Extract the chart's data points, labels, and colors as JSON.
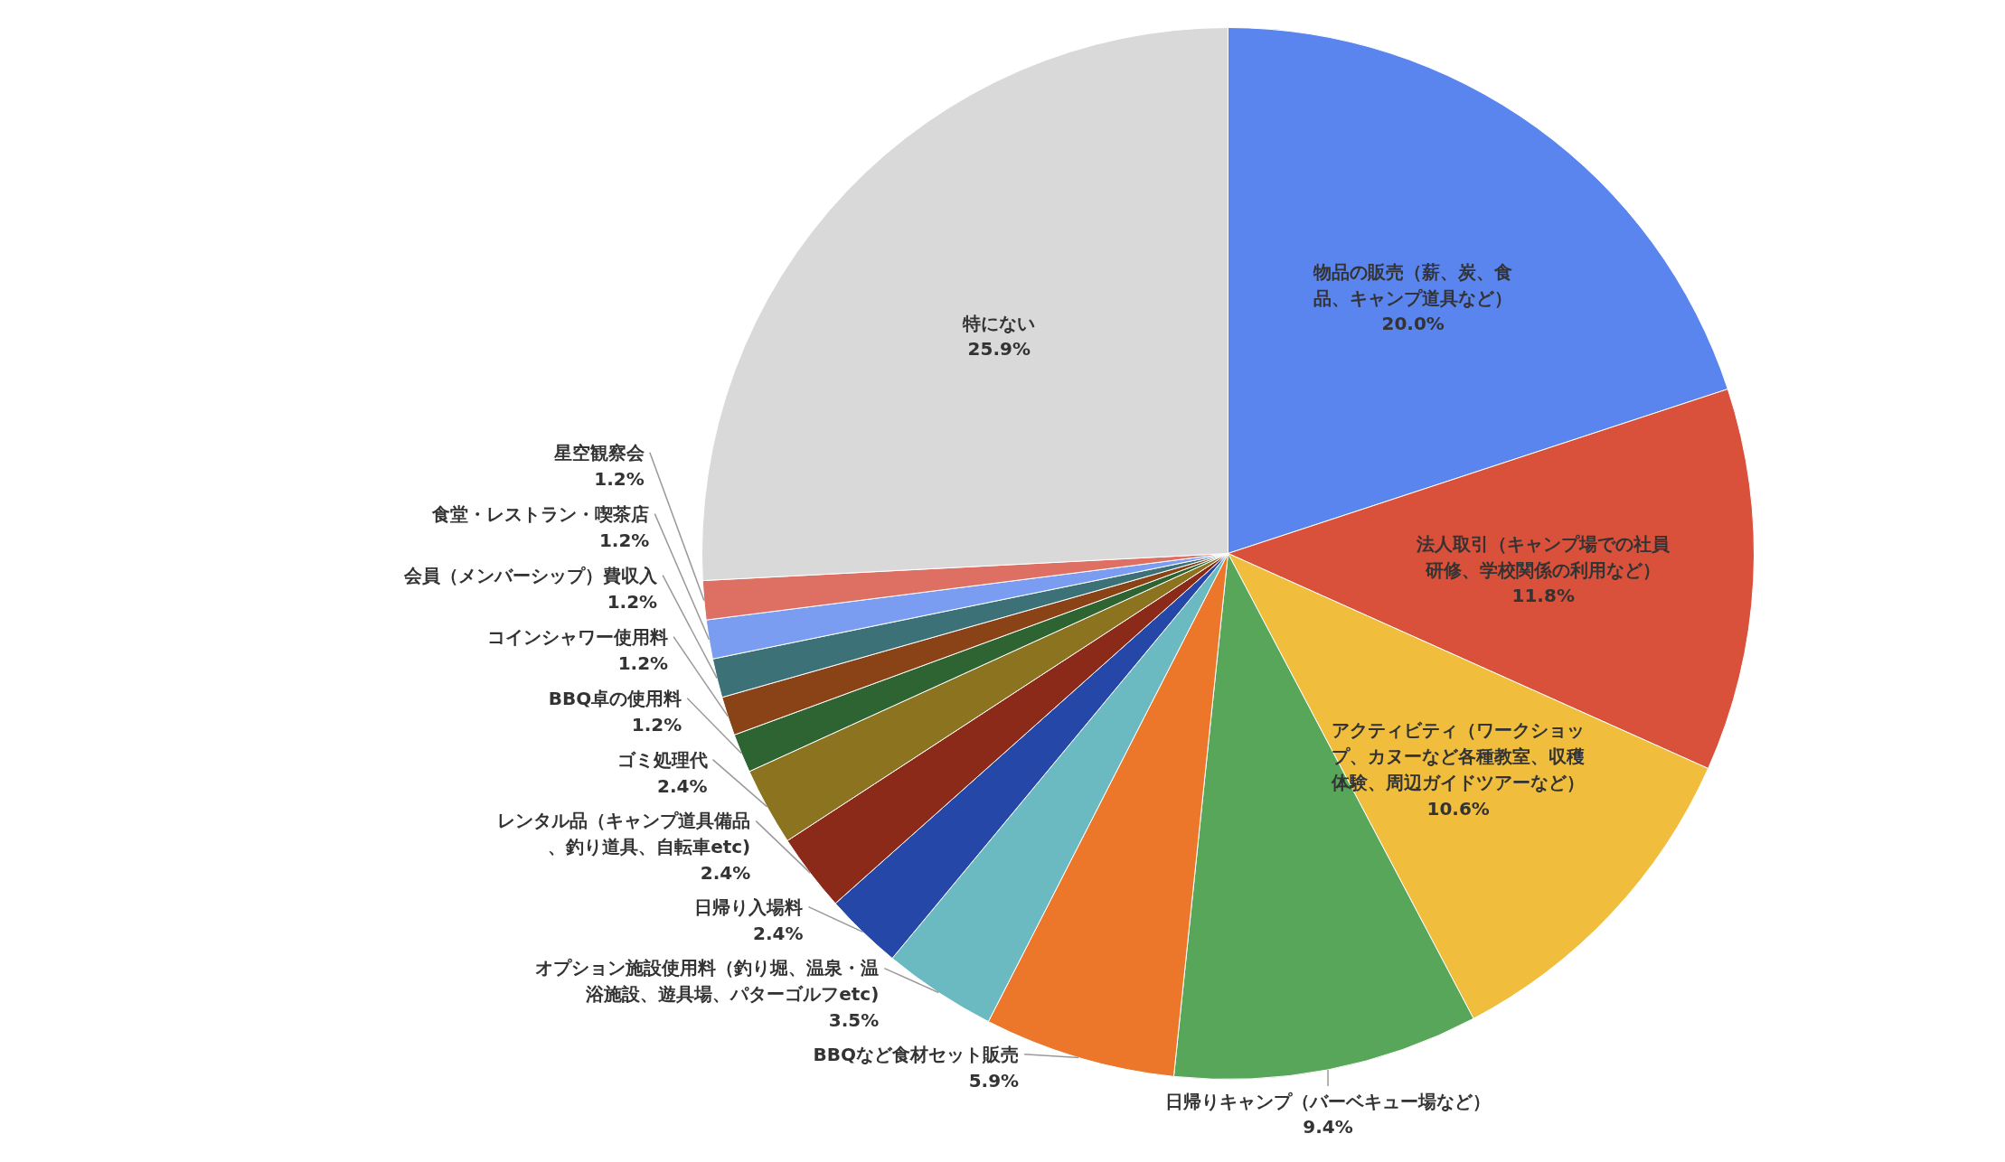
{
  "chart_data": {
    "type": "pie",
    "data_labels": true,
    "categories": [
      "物品の販売（薪、炭、食品、キャンプ道具など）",
      "法人取引（キャンプ場での社員研修、学校関係の利用など）",
      "アクティビティ（ワークショップ、カヌーなど各種教室、収穫体験、周辺ガイドツアーなど）",
      "日帰りキャンプ（バーベキュー場など）",
      "BBQなど食材セット販売",
      "オプション施設使用料（釣り堀、温泉・温浴施設、遊具場、パターゴルフetc)",
      "日帰り入場料",
      "レンタル品（キャンプ道具備品、釣り道具、自転車etc)",
      "ゴミ処理代",
      "BBQ卓の使用料",
      "コインシャワー使用料",
      "会員（メンバーシップ）費収入",
      "食堂・レストラン・喫茶店",
      "星空観察会",
      "特にない"
    ],
    "values": [
      20.0,
      11.8,
      10.6,
      9.4,
      5.9,
      3.5,
      2.4,
      2.4,
      2.4,
      1.2,
      1.2,
      1.2,
      1.2,
      1.2,
      25.9
    ],
    "value_labels": [
      "20.0%",
      "11.8%",
      "10.6%",
      "9.4%",
      "5.9%",
      "3.5%",
      "2.4%",
      "2.4%",
      "2.4%",
      "1.2%",
      "1.2%",
      "1.2%",
      "1.2%",
      "1.2%",
      "25.9%"
    ],
    "colors": [
      "#5a84ee",
      "#d9503b",
      "#f0be3c",
      "#57a65a",
      "#ec772b",
      "#6bbac2",
      "#2547a8",
      "#8c2a1a",
      "#8c7320",
      "#2e6332",
      "#8a4316",
      "#3b7177",
      "#7a9df2",
      "#dd7063",
      "#d9d9d9"
    ]
  }
}
